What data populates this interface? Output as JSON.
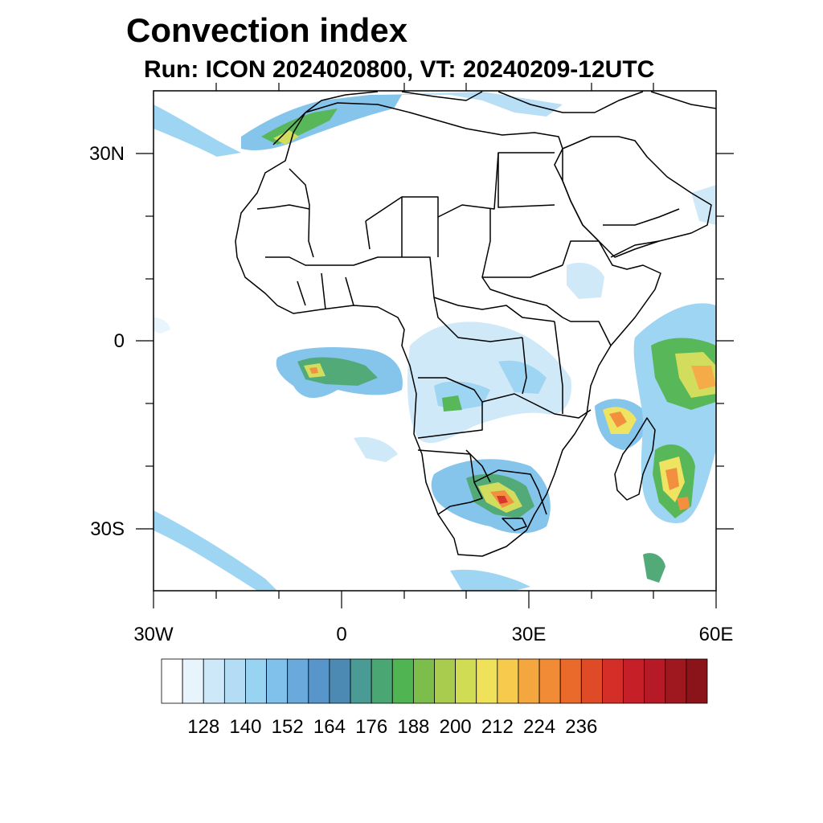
{
  "title": "Convection index",
  "subtitle": "Run: ICON 2024020800,  VT: 20240209-12UTC",
  "map": {
    "region": "Africa",
    "lon_range": [
      -30,
      60
    ],
    "lat_range": [
      -40,
      40
    ],
    "x_ticks": [
      {
        "label": "30W"
      },
      {
        "label": "0"
      },
      {
        "label": "30E"
      },
      {
        "label": "60E"
      }
    ],
    "y_ticks": [
      {
        "label": "30N"
      },
      {
        "label": "0"
      },
      {
        "label": "30S"
      }
    ]
  },
  "colorbar": {
    "colors": [
      "#ffffff",
      "#e8f4fc",
      "#cde8f8",
      "#b4ddf5",
      "#98d3f2",
      "#7fc1ea",
      "#6aa9dc",
      "#5895cb",
      "#4c8ab4",
      "#4a9a95",
      "#4aa672",
      "#4fb451",
      "#7dbd4c",
      "#a9cc4e",
      "#d1dc55",
      "#efe25a",
      "#f7c94c",
      "#f5a73f",
      "#f28b36",
      "#ea6a2c",
      "#df4b27",
      "#d52d27",
      "#c71f28",
      "#b61a26",
      "#a0181f",
      "#8a141a"
    ],
    "tick_labels": [
      "128",
      "140",
      "152",
      "164",
      "176",
      "188",
      "200",
      "212",
      "224",
      "236"
    ]
  }
}
